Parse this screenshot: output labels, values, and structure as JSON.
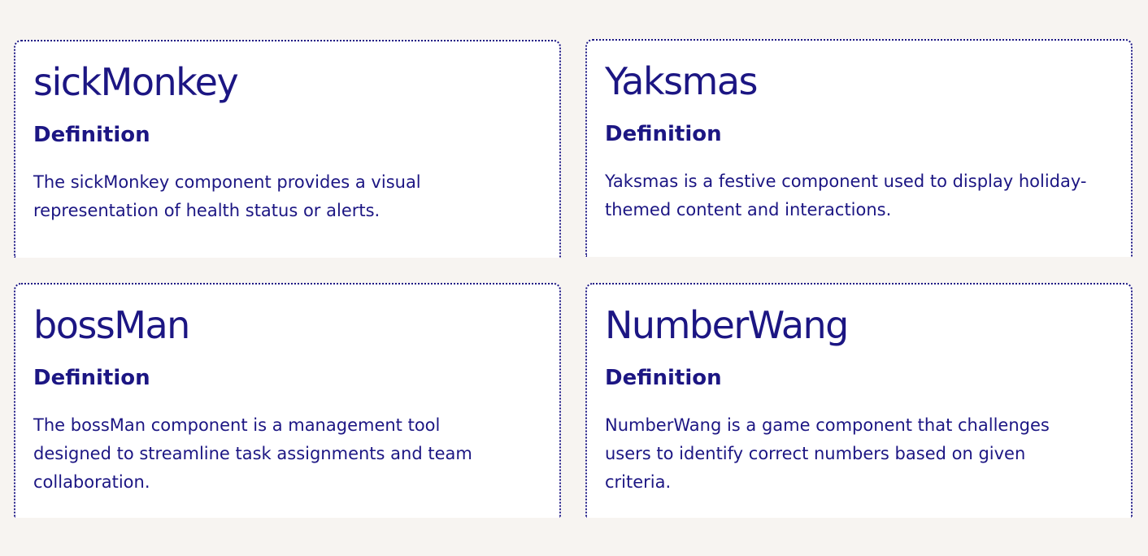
{
  "cards": [
    {
      "title": "sickMonkey",
      "subtitle": "Definition",
      "description": "The sickMonkey component provides a visual representation of health status or alerts."
    },
    {
      "title": "Yaksmas",
      "subtitle": "Definition",
      "description": "Yaksmas is a festive component used to display holiday-themed content and interactions."
    },
    {
      "title": "bossMan",
      "subtitle": "Definition",
      "description": "The bossMan component is a management tool designed to streamline task assignments and team collaboration."
    },
    {
      "title": "NumberWang",
      "subtitle": "Definition",
      "description": "NumberWang is a game component that challenges users to identify correct numbers based on given criteria."
    }
  ],
  "colors": {
    "page_background": "#f7f4f1",
    "card_background": "#ffffff",
    "text": "#1c1683",
    "border": "#1c1683"
  }
}
